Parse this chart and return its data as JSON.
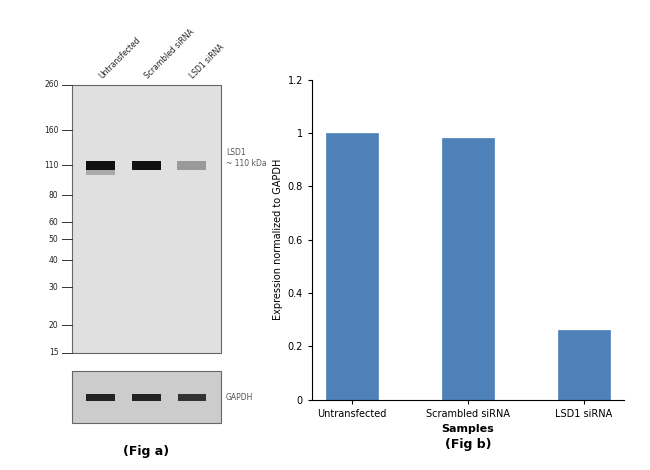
{
  "bar_categories": [
    "Untransfected",
    "Scrambled siRNA",
    "LSD1 siRNA"
  ],
  "bar_values": [
    1.0,
    0.98,
    0.26
  ],
  "bar_color": "#4f81b9",
  "ylabel_bar": "Expression normalized to GAPDH",
  "xlabel_bar": "Samples",
  "ylim_bar": [
    0,
    1.2
  ],
  "yticks_bar": [
    0,
    0.2,
    0.4,
    0.6,
    0.8,
    1.0,
    1.2
  ],
  "fig_a_label": "(Fig a)",
  "fig_b_label": "(Fig b)",
  "wb_markers": [
    260,
    160,
    110,
    80,
    60,
    50,
    40,
    30,
    20,
    15
  ],
  "wb_lsd1_label": "LSD1\n~ 110 kDa",
  "wb_gapdh_label": "GAPDH",
  "wb_sample_labels": [
    "Untransfected",
    "Scrambled siRNA",
    "LSD1 siRNA"
  ],
  "wb_bg_color": "#e0e0e0",
  "wb_band_color_dark": "#111111",
  "wb_band_color_light": "#999999",
  "wb_gapdh_box_bg": "#cccccc"
}
